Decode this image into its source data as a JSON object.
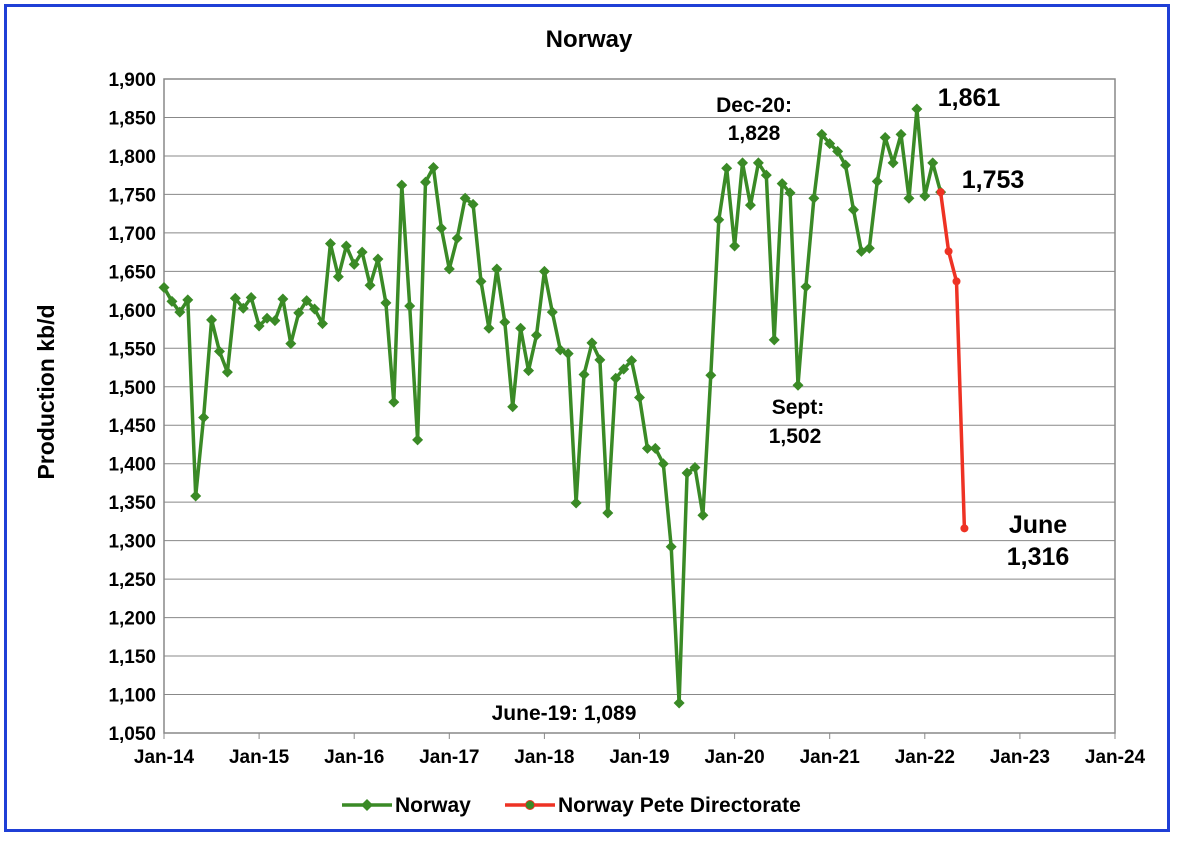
{
  "chart_data": {
    "type": "line",
    "title": "Norway",
    "xlabel": "",
    "ylabel": "Production kb/d",
    "ylim": [
      1050,
      1900
    ],
    "y_ticks": [
      1050,
      1100,
      1150,
      1200,
      1250,
      1300,
      1350,
      1400,
      1450,
      1500,
      1550,
      1600,
      1650,
      1700,
      1750,
      1800,
      1850,
      1900
    ],
    "y_tick_labels": [
      "1,050",
      "1,100",
      "1,150",
      "1,200",
      "1,250",
      "1,300",
      "1,350",
      "1,400",
      "1,450",
      "1,500",
      "1,550",
      "1,600",
      "1,650",
      "1,700",
      "1,750",
      "1,800",
      "1,850",
      "1,900"
    ],
    "xlim": [
      "2014-01",
      "2024-01"
    ],
    "x_ticks": [
      "2014-01",
      "2015-01",
      "2016-01",
      "2017-01",
      "2018-01",
      "2019-01",
      "2020-01",
      "2021-01",
      "2022-01",
      "2023-01",
      "2024-01"
    ],
    "x_tick_labels": [
      "Jan-14",
      "Jan-15",
      "Jan-16",
      "Jan-17",
      "Jan-18",
      "Jan-19",
      "Jan-20",
      "Jan-21",
      "Jan-22",
      "Jan-23",
      "Jan-24"
    ],
    "grid": "horizontal",
    "legend": "bottom",
    "series": [
      {
        "name": "Norway",
        "color": "#3a8a26",
        "marker": "diamond",
        "start": "2014-01",
        "values": [
          1629,
          1611,
          1597,
          1613,
          1358,
          1460,
          1587,
          1546,
          1519,
          1615,
          1602,
          1616,
          1579,
          1589,
          1586,
          1614,
          1556,
          1596,
          1612,
          1601,
          1582,
          1686,
          1643,
          1683,
          1659,
          1675,
          1632,
          1666,
          1609,
          1480,
          1762,
          1605,
          1431,
          1766,
          1785,
          1706,
          1653,
          1693,
          1745,
          1737,
          1637,
          1576,
          1653,
          1584,
          1474,
          1576,
          1521,
          1567,
          1650,
          1597,
          1548,
          1543,
          1349,
          1516,
          1557,
          1535,
          1336,
          1511,
          1523,
          1534,
          1486,
          1420,
          1420,
          1400,
          1292,
          1089,
          1388,
          1395,
          1333,
          1515,
          1717,
          1784,
          1683,
          1791,
          1736,
          1791,
          1775,
          1561,
          1764,
          1752,
          1502,
          1630,
          1745,
          1828,
          1816,
          1806,
          1788,
          1730,
          1676,
          1680,
          1767,
          1824,
          1791,
          1828,
          1745,
          1861,
          1748,
          1791,
          1753
        ]
      },
      {
        "name": "Norway Pete Directorate",
        "color": "#ee3224",
        "marker": "circle",
        "start": "2022-03",
        "values": [
          1753,
          1676,
          1637,
          1316
        ]
      }
    ],
    "annotations": [
      {
        "lines": [
          "Dec-20:",
          "1,828"
        ]
      },
      {
        "lines": [
          "1,861"
        ]
      },
      {
        "lines": [
          "1,753"
        ]
      },
      {
        "lines": [
          "Sept:",
          "1,502"
        ]
      },
      {
        "lines": [
          "June-19: 1,089"
        ]
      },
      {
        "lines": [
          "June",
          "1,316"
        ]
      }
    ]
  }
}
